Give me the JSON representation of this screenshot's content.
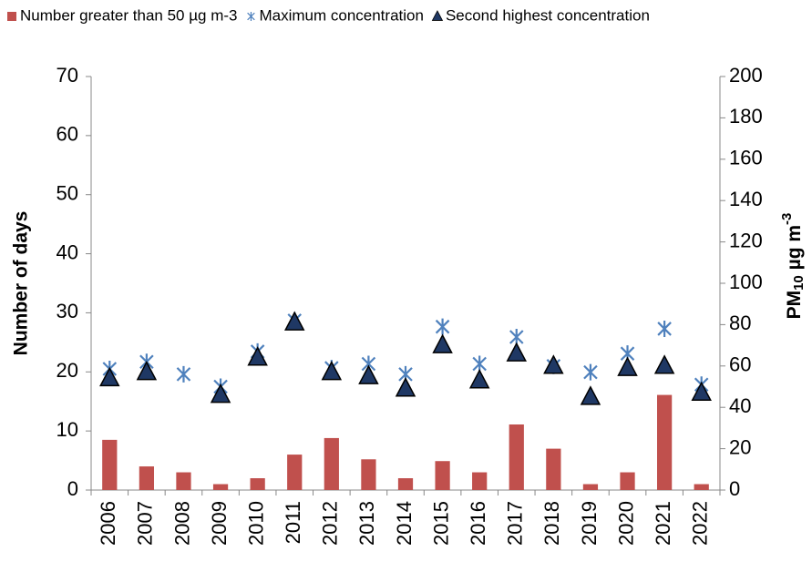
{
  "chart_data": {
    "type": "bar",
    "categories": [
      "2006",
      "2007",
      "2008",
      "2009",
      "2010",
      "2011",
      "2012",
      "2013",
      "2014",
      "2015",
      "2016",
      "2017",
      "2018",
      "2019",
      "2020",
      "2021",
      "2022"
    ],
    "ylabel": "Number of days",
    "y2label": {
      "main": "PM",
      "sub": "10",
      "unit": " µg m",
      "sup": "-3"
    },
    "ylim": [
      0,
      70
    ],
    "yticks": [
      0,
      10,
      20,
      30,
      40,
      50,
      60,
      70
    ],
    "y2lim": [
      0,
      200
    ],
    "y2ticks": [
      0,
      20,
      40,
      60,
      80,
      100,
      120,
      140,
      160,
      180,
      200
    ],
    "legend": "top",
    "series": [
      {
        "name": "Number greater than 50 µg m-3",
        "type": "bar",
        "color": "#c0504d",
        "values": [
          8.5,
          4,
          3,
          1,
          2,
          6,
          8.8,
          5.2,
          2,
          4.9,
          3,
          11.1,
          7,
          1,
          3,
          16.1,
          1
        ]
      },
      {
        "name": "Maximum concentration",
        "type": "scatter",
        "marker": "star",
        "axis": "y2",
        "color": "#4f81bd",
        "values": [
          58.6,
          62,
          56,
          50,
          67,
          82,
          59,
          61,
          56,
          79,
          61,
          74,
          60,
          57,
          66,
          78,
          51
        ]
      },
      {
        "name": "Second highest concentration",
        "type": "scatter",
        "marker": "triangle",
        "axis": "y2",
        "color": "#1f3864",
        "values": [
          54,
          57,
          null,
          46,
          64,
          81,
          57,
          55,
          49,
          70,
          53,
          66,
          60,
          45,
          59,
          60,
          47
        ]
      }
    ]
  }
}
